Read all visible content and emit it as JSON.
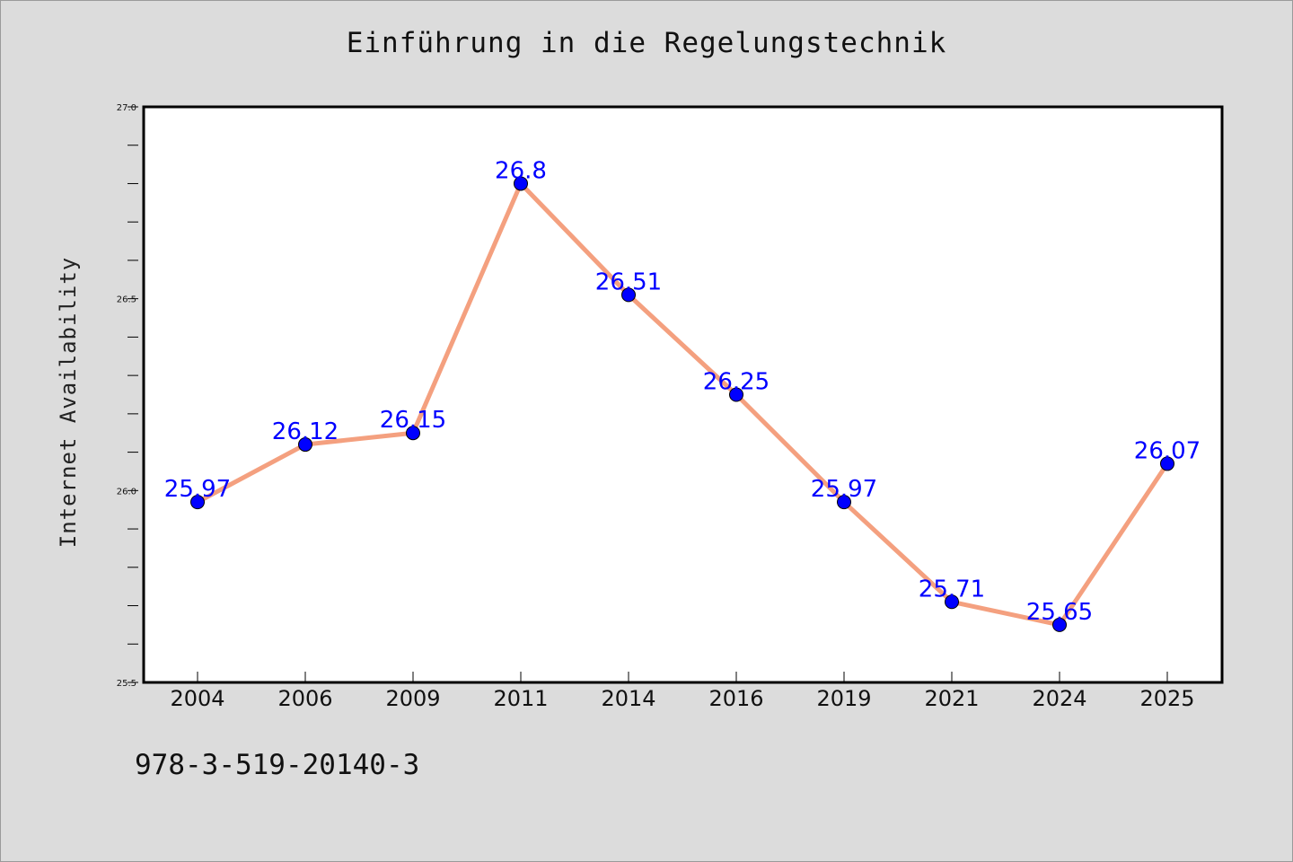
{
  "chart_data": {
    "type": "line",
    "title": "Einführung in die Regelungstechnik",
    "xlabel": "",
    "ylabel": "Internet Availability",
    "categories": [
      "2004",
      "2006",
      "2009",
      "2011",
      "2014",
      "2016",
      "2019",
      "2021",
      "2024",
      "2025"
    ],
    "series": [
      {
        "values": [
          25.97,
          26.12,
          26.15,
          26.8,
          26.51,
          26.25,
          25.97,
          25.71,
          25.65,
          26.07
        ]
      }
    ],
    "data_labels": [
      "25.97",
      "26.12",
      "26.15",
      "26.8",
      "26.51",
      "26.25",
      "25.97",
      "25.71",
      "25.65",
      "26.07"
    ],
    "ylim": [
      25.5,
      27.0
    ],
    "yticks": [
      "25.5",
      "26.0",
      "26.5",
      "27.0"
    ],
    "grid": false,
    "line_color": "#f4a07f",
    "marker_color": "#0000ff",
    "label_color": "#0000ff"
  },
  "footer_text": "978-3-519-20140-3"
}
